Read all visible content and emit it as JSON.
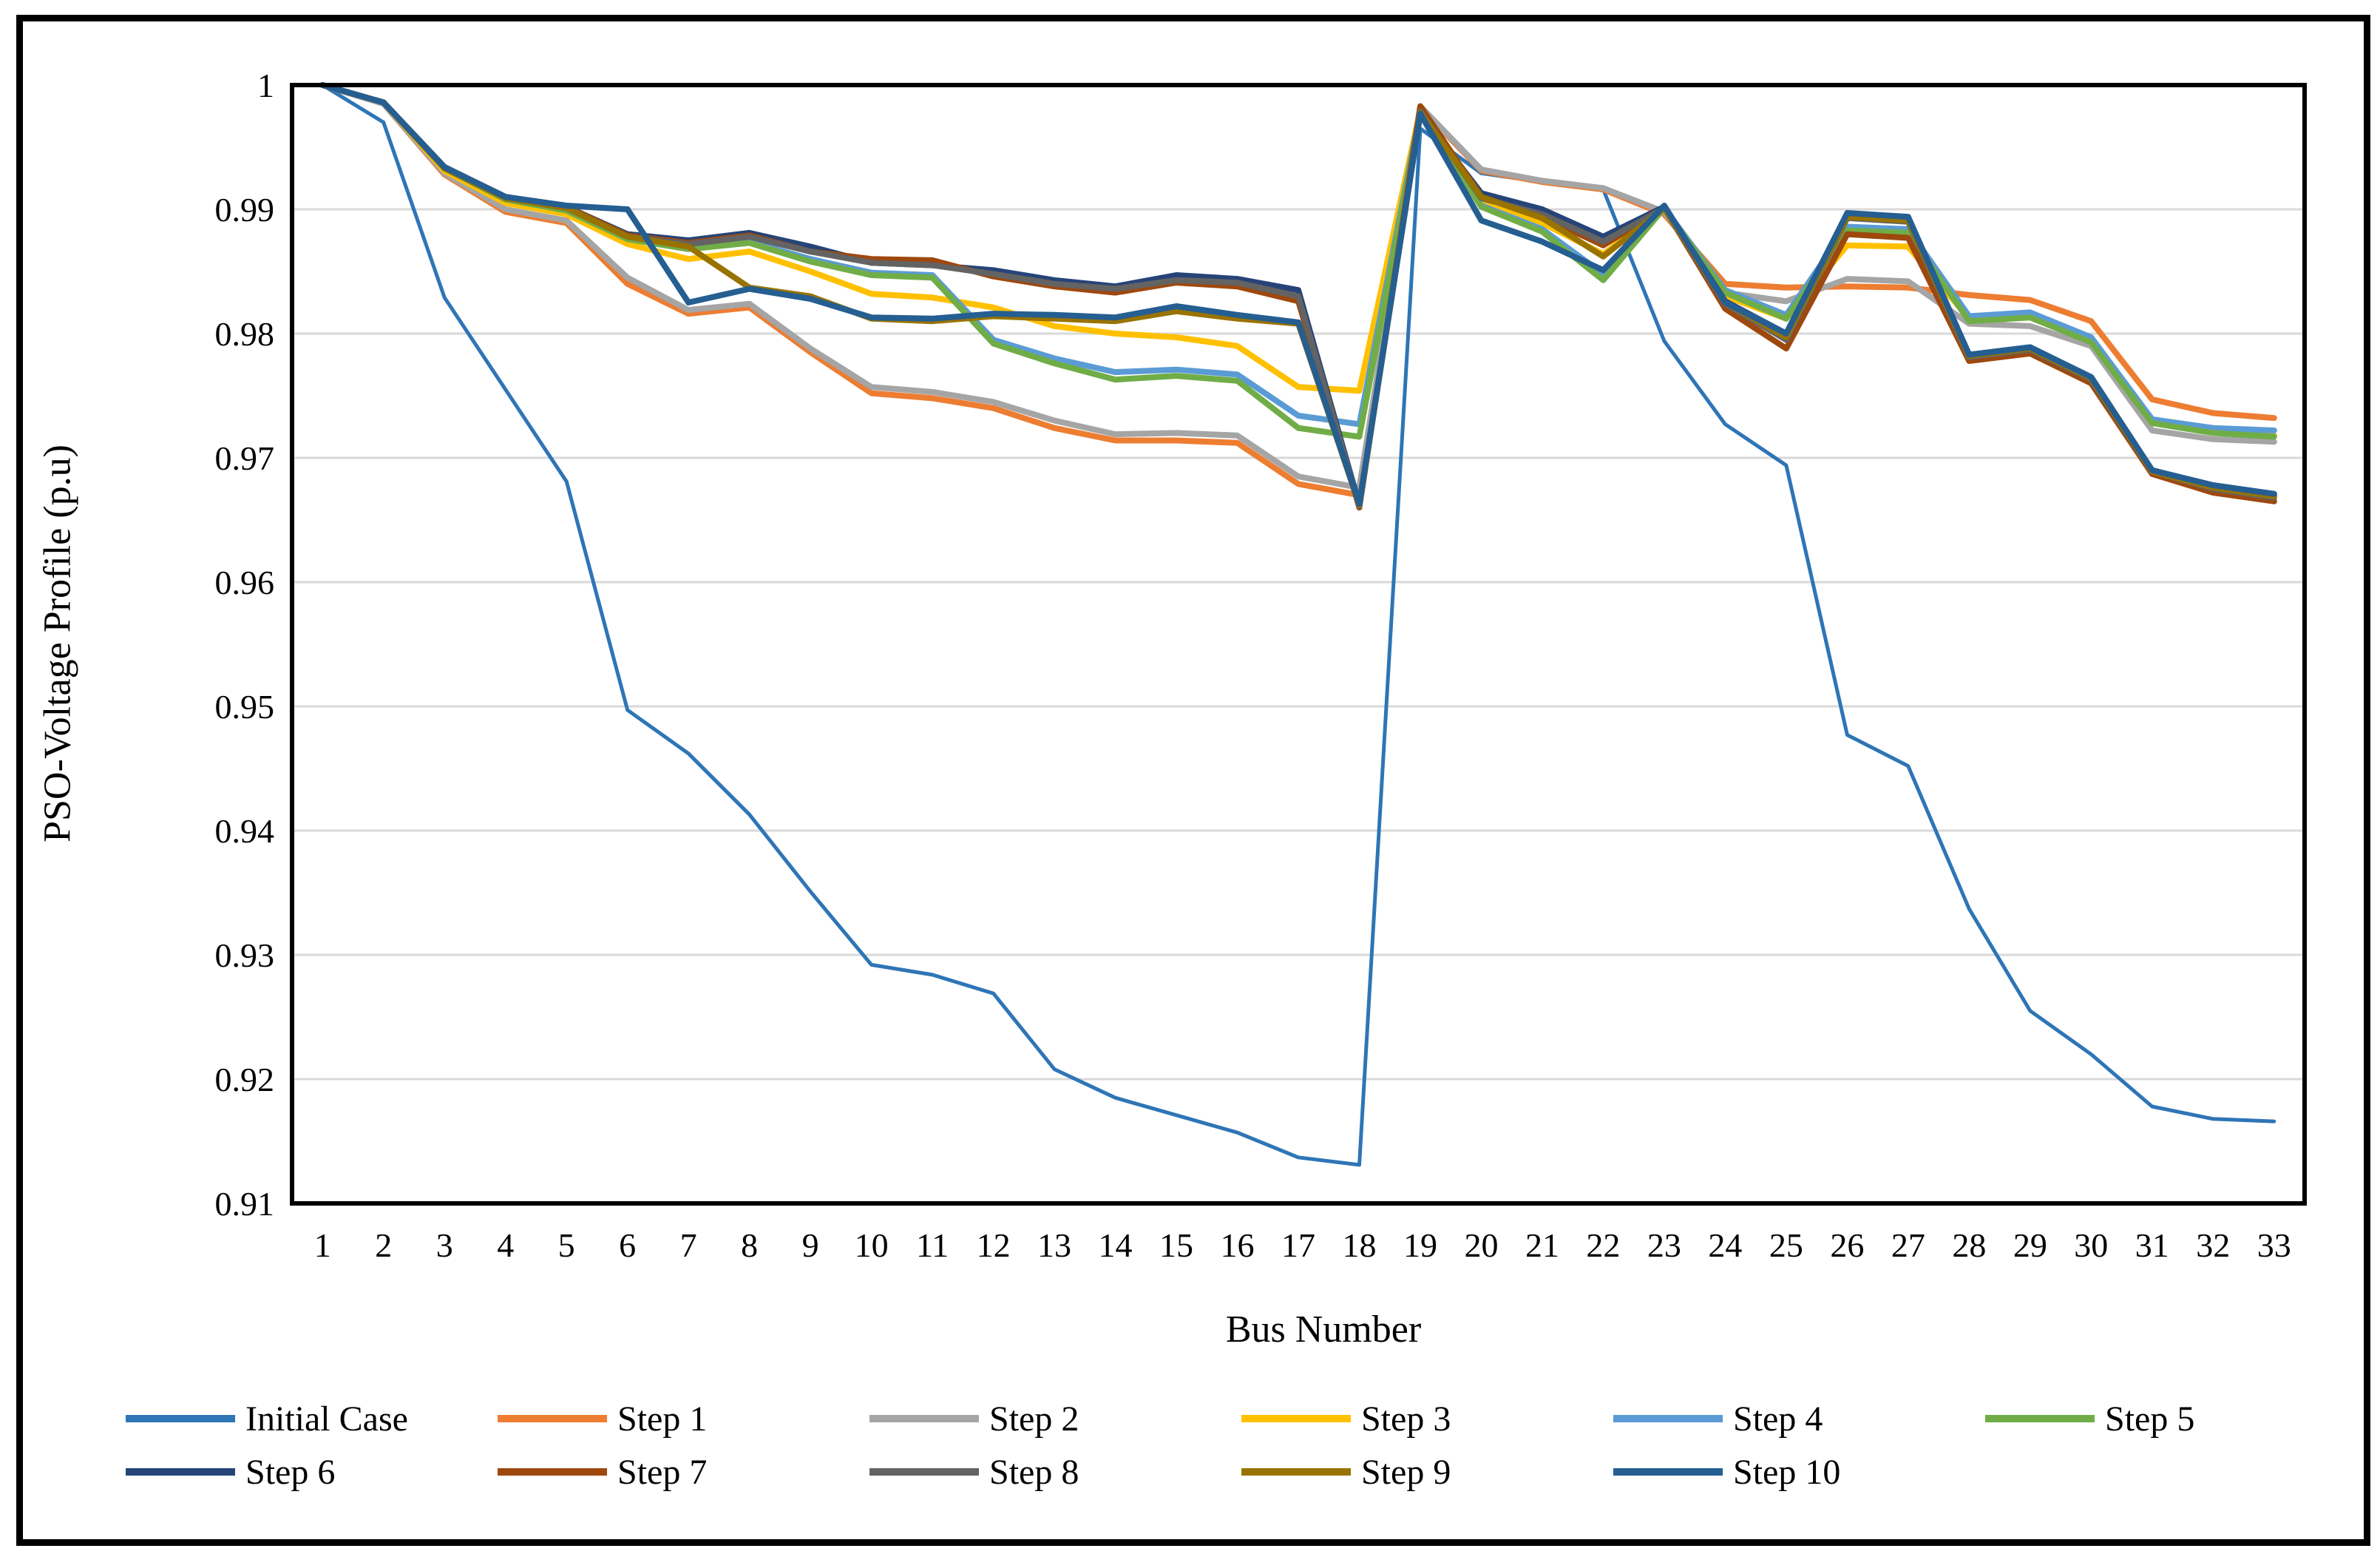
{
  "chart_data": {
    "type": "line",
    "title": "",
    "xlabel": "Bus Number",
    "ylabel": "PSO-Voltage Profile (p.u)",
    "ylim": [
      0.91,
      1.0
    ],
    "y_ticks": [
      "1",
      "0.99",
      "0.98",
      "0.97",
      "0.96",
      "0.95",
      "0.94",
      "0.93",
      "0.92",
      "0.91"
    ],
    "grid": "horizontal",
    "legend_position": "bottom",
    "x": [
      1,
      2,
      3,
      4,
      5,
      6,
      7,
      8,
      9,
      10,
      11,
      12,
      13,
      14,
      15,
      16,
      17,
      18,
      19,
      20,
      21,
      22,
      23,
      24,
      25,
      26,
      27,
      28,
      29,
      30,
      31,
      32,
      33
    ],
    "series": [
      {
        "name": "Initial Case",
        "color": "#2E75B6",
        "width": 5,
        "values": [
          1.0,
          0.997,
          0.9829,
          0.9755,
          0.9681,
          0.9497,
          0.9462,
          0.9413,
          0.9351,
          0.9292,
          0.9284,
          0.9269,
          0.9208,
          0.9185,
          0.9171,
          0.9157,
          0.9137,
          0.9131,
          0.9965,
          0.9929,
          0.9922,
          0.9916,
          0.9794,
          0.9727,
          0.9694,
          0.9477,
          0.9452,
          0.9337,
          0.9255,
          0.922,
          0.9178,
          0.9168,
          0.9166
        ]
      },
      {
        "name": "Step 1",
        "color": "#ED7D31",
        "width": 8,
        "values": [
          1.0,
          0.9985,
          0.9928,
          0.9898,
          0.9889,
          0.984,
          0.9816,
          0.9821,
          0.9785,
          0.9752,
          0.9748,
          0.974,
          0.9724,
          0.9714,
          0.9714,
          0.9712,
          0.9679,
          0.967,
          0.9982,
          0.9931,
          0.9922,
          0.9916,
          0.9896,
          0.984,
          0.9837,
          0.9838,
          0.9837,
          0.9831,
          0.9827,
          0.981,
          0.9747,
          0.9736,
          0.9732
        ]
      },
      {
        "name": "Step 2",
        "color": "#A5A5A5",
        "width": 8,
        "values": [
          1.0,
          0.9985,
          0.9929,
          0.99,
          0.9891,
          0.9845,
          0.9819,
          0.9824,
          0.9788,
          0.9757,
          0.9753,
          0.9745,
          0.973,
          0.9719,
          0.972,
          0.9718,
          0.9685,
          0.9676,
          0.9983,
          0.9932,
          0.9923,
          0.9917,
          0.9898,
          0.9833,
          0.9826,
          0.9844,
          0.9842,
          0.9808,
          0.9806,
          0.979,
          0.9722,
          0.9715,
          0.9713
        ]
      },
      {
        "name": "Step 3",
        "color": "#FFC000",
        "width": 8,
        "values": [
          1.0,
          0.9986,
          0.9931,
          0.9905,
          0.9896,
          0.9872,
          0.986,
          0.9866,
          0.985,
          0.9832,
          0.9829,
          0.9821,
          0.9806,
          0.98,
          0.9797,
          0.979,
          0.9757,
          0.9754,
          0.998,
          0.9906,
          0.9889,
          0.9864,
          0.99,
          0.983,
          0.9812,
          0.9871,
          0.987,
          0.9812,
          0.9813,
          0.9794,
          0.9728,
          0.9721,
          0.9718
        ]
      },
      {
        "name": "Step 4",
        "color": "#5B9BD5",
        "width": 8,
        "values": [
          1.0,
          0.9986,
          0.9933,
          0.9908,
          0.99,
          0.9877,
          0.9869,
          0.9874,
          0.986,
          0.9849,
          0.9847,
          0.9795,
          0.978,
          0.9769,
          0.9771,
          0.9767,
          0.9734,
          0.9727,
          0.9979,
          0.9903,
          0.9884,
          0.9848,
          0.9901,
          0.9835,
          0.9815,
          0.9886,
          0.9884,
          0.9814,
          0.9817,
          0.9797,
          0.9731,
          0.9724,
          0.9722
        ]
      },
      {
        "name": "Step 5",
        "color": "#70AD47",
        "width": 8,
        "values": [
          1.0,
          0.9986,
          0.9933,
          0.9908,
          0.9899,
          0.9876,
          0.9868,
          0.9873,
          0.9858,
          0.9847,
          0.9845,
          0.9792,
          0.9776,
          0.9763,
          0.9766,
          0.9762,
          0.9724,
          0.9717,
          0.9978,
          0.9902,
          0.9882,
          0.9843,
          0.9901,
          0.9833,
          0.9812,
          0.9883,
          0.9881,
          0.981,
          0.9813,
          0.9793,
          0.9728,
          0.972,
          0.9717
        ]
      },
      {
        "name": "Step 6",
        "color": "#264478",
        "width": 8,
        "values": [
          1.0,
          0.9986,
          0.9934,
          0.991,
          0.9902,
          0.988,
          0.9875,
          0.9881,
          0.987,
          0.9857,
          0.9855,
          0.9851,
          0.9843,
          0.9838,
          0.9847,
          0.9844,
          0.9835,
          0.9662,
          0.9977,
          0.9913,
          0.99,
          0.9878,
          0.9902,
          0.9826,
          0.98,
          0.9896,
          0.9893,
          0.9783,
          0.9789,
          0.9765,
          0.969,
          0.9677,
          0.967
        ]
      },
      {
        "name": "Step 7",
        "color": "#9E480E",
        "width": 8,
        "values": [
          1.0,
          0.9986,
          0.9934,
          0.991,
          0.9902,
          0.9879,
          0.9873,
          0.9879,
          0.9866,
          0.986,
          0.9859,
          0.9846,
          0.9838,
          0.9833,
          0.9841,
          0.9838,
          0.9826,
          0.966,
          0.9983,
          0.991,
          0.9894,
          0.9871,
          0.9901,
          0.982,
          0.9788,
          0.988,
          0.9877,
          0.9778,
          0.9784,
          0.976,
          0.9687,
          0.9672,
          0.9665
        ]
      },
      {
        "name": "Step 8",
        "color": "#636363",
        "width": 8,
        "values": [
          1.0,
          0.9986,
          0.9933,
          0.9909,
          0.9901,
          0.9878,
          0.9872,
          0.9878,
          0.9866,
          0.9857,
          0.9855,
          0.9848,
          0.984,
          0.9836,
          0.9843,
          0.9841,
          0.983,
          0.9661,
          0.9979,
          0.9909,
          0.9896,
          0.9874,
          0.9901,
          0.9824,
          0.9795,
          0.9893,
          0.989,
          0.9781,
          0.9787,
          0.9763,
          0.9689,
          0.9675,
          0.9668
        ]
      },
      {
        "name": "Step 9",
        "color": "#997300",
        "width": 8,
        "values": [
          1.0,
          0.9986,
          0.9933,
          0.9909,
          0.9901,
          0.9878,
          0.987,
          0.9837,
          0.983,
          0.9812,
          0.981,
          0.9814,
          0.9812,
          0.981,
          0.9818,
          0.9812,
          0.9808,
          0.9662,
          0.9978,
          0.991,
          0.9893,
          0.9862,
          0.9901,
          0.9825,
          0.9797,
          0.9894,
          0.9891,
          0.9782,
          0.9788,
          0.9764,
          0.9689,
          0.9676,
          0.9669
        ]
      },
      {
        "name": "Step 10",
        "color": "#255E91",
        "width": 8,
        "values": [
          1.0,
          0.9986,
          0.9934,
          0.991,
          0.9903,
          0.99,
          0.9825,
          0.9836,
          0.9828,
          0.9813,
          0.9812,
          0.9816,
          0.9815,
          0.9813,
          0.9822,
          0.9815,
          0.9809,
          0.9663,
          0.9977,
          0.9891,
          0.9874,
          0.9851,
          0.9903,
          0.9825,
          0.98,
          0.9897,
          0.9894,
          0.9783,
          0.9789,
          0.9765,
          0.969,
          0.9678,
          0.9671
        ]
      }
    ]
  },
  "axes": {
    "x_title": "Bus Number",
    "y_title": "PSO-Voltage Profile (p.u)"
  },
  "legend": {
    "items": [
      {
        "label": "Initial Case",
        "color": "#2E75B6"
      },
      {
        "label": "Step 1",
        "color": "#ED7D31"
      },
      {
        "label": "Step 2",
        "color": "#A5A5A5"
      },
      {
        "label": "Step 3",
        "color": "#FFC000"
      },
      {
        "label": "Step 4",
        "color": "#5B9BD5"
      },
      {
        "label": "Step 5",
        "color": "#70AD47"
      },
      {
        "label": "Step 6",
        "color": "#264478"
      },
      {
        "label": "Step 7",
        "color": "#9E480E"
      },
      {
        "label": "Step 8",
        "color": "#636363"
      },
      {
        "label": "Step 9",
        "color": "#997300"
      },
      {
        "label": "Step 10",
        "color": "#255E91"
      }
    ]
  },
  "style": {
    "gridline_color": "#D9D9D9",
    "plot_border_color": "#000000",
    "outer_border_color": "#000000",
    "background": "#FFFFFF"
  }
}
